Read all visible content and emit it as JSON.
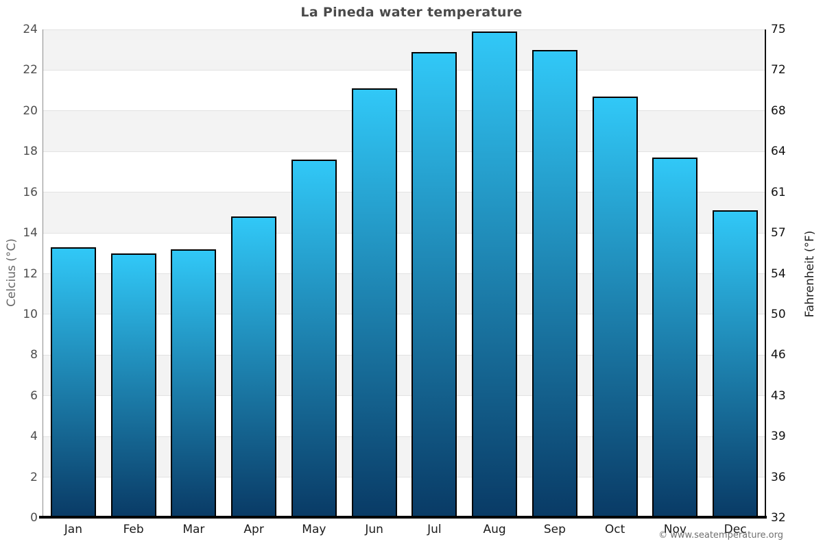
{
  "page": {
    "watermark": "© www.seatemperature.org"
  },
  "chart_data": {
    "type": "bar",
    "title": "La Pineda water temperature",
    "categories": [
      "Jan",
      "Feb",
      "Mar",
      "Apr",
      "May",
      "Jun",
      "Jul",
      "Aug",
      "Sep",
      "Oct",
      "Nov",
      "Dec"
    ],
    "values": [
      13.3,
      13.0,
      13.2,
      14.8,
      17.6,
      21.1,
      22.9,
      23.9,
      23.0,
      20.7,
      17.7,
      15.1
    ],
    "unit": "°C",
    "ylabel_left": "Celcius (°C)",
    "ylabel_right": "Fahrenheit (°F)",
    "ylim_c": [
      0,
      24
    ],
    "yticks_c": [
      0,
      2,
      4,
      6,
      8,
      10,
      12,
      14,
      16,
      18,
      20,
      22,
      24
    ],
    "yticks_f_labels": [
      "32",
      "36",
      "39",
      "43",
      "46",
      "50",
      "54",
      "57",
      "61",
      "64",
      "68",
      "72",
      "75"
    ],
    "xlabel": "",
    "legend": "none",
    "grid": "horizontal gridlines every 2°C with alternating gray/white background bands",
    "colors": {
      "bar_gradient_top": "#31c8f7",
      "bar_gradient_bottom": "#093a65",
      "bar_border": "#000000",
      "band_gray": "#f3f3f3",
      "gridline": "#e2e2e2",
      "title_text": "#4a4a4a"
    }
  }
}
